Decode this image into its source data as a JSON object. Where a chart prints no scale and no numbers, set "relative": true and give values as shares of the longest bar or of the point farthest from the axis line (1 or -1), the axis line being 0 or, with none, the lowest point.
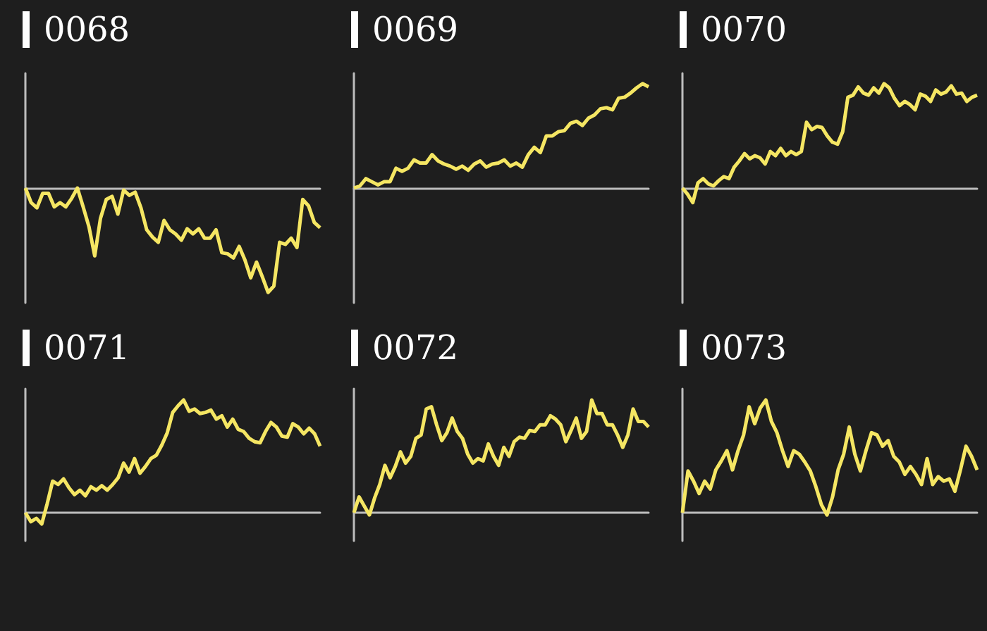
{
  "chart_data": [
    {
      "type": "line",
      "title": "0068",
      "relative": true,
      "categories": [
        null,
        null,
        null,
        null,
        null,
        null,
        null,
        null,
        null,
        null,
        null,
        null,
        null,
        null,
        null,
        null,
        null,
        null,
        null,
        null,
        null,
        null,
        null,
        null,
        null,
        null,
        null,
        null,
        null,
        null,
        null,
        null,
        null,
        null,
        null,
        null,
        null,
        null,
        null,
        null,
        null,
        null,
        null,
        null,
        null,
        null,
        null,
        null,
        null,
        null,
        null,
        null
      ],
      "series": [
        {
          "color": "#f5e663",
          "values": [
            0,
            -0.14,
            -0.19,
            -0.05,
            -0.05,
            -0.18,
            -0.14,
            -0.18,
            -0.1,
            0,
            -0.18,
            -0.37,
            -0.65,
            -0.29,
            -0.11,
            -0.08,
            -0.25,
            -0.02,
            -0.07,
            -0.04,
            -0.19,
            -0.4,
            -0.47,
            -0.52,
            -0.31,
            -0.4,
            -0.44,
            -0.5,
            -0.39,
            -0.44,
            -0.39,
            -0.48,
            -0.48,
            -0.4,
            -0.62,
            -0.63,
            -0.67,
            -0.56,
            -0.69,
            -0.86,
            -0.71,
            -0.85,
            -1,
            -0.94,
            -0.52,
            -0.54,
            -0.48,
            -0.57,
            -0.11,
            -0.17,
            -0.33,
            -0.38
          ]
        }
      ]
    },
    {
      "type": "line",
      "title": "0069",
      "relative": true,
      "categories": [
        null,
        null,
        null,
        null,
        null,
        null,
        null,
        null,
        null,
        null,
        null,
        null,
        null,
        null,
        null,
        null,
        null,
        null,
        null,
        null,
        null,
        null,
        null,
        null,
        null,
        null,
        null,
        null,
        null,
        null,
        null,
        null,
        null,
        null,
        null,
        null,
        null,
        null,
        null,
        null,
        null,
        null,
        null,
        null,
        null,
        null,
        null,
        null,
        null,
        null
      ],
      "series": [
        {
          "color": "#f5e663",
          "values": [
            0,
            0.02,
            0.09,
            0.06,
            0.03,
            0.06,
            0.06,
            0.19,
            0.16,
            0.19,
            0.27,
            0.24,
            0.24,
            0.32,
            0.26,
            0.23,
            0.21,
            0.18,
            0.21,
            0.17,
            0.23,
            0.26,
            0.2,
            0.23,
            0.24,
            0.27,
            0.21,
            0.24,
            0.2,
            0.32,
            0.39,
            0.34,
            0.5,
            0.5,
            0.54,
            0.55,
            0.62,
            0.64,
            0.6,
            0.67,
            0.7,
            0.76,
            0.77,
            0.75,
            0.86,
            0.87,
            0.91,
            0.96,
            1,
            0.97
          ]
        }
      ]
    },
    {
      "type": "line",
      "title": "0070",
      "relative": true,
      "categories": [
        null,
        null,
        null,
        null,
        null,
        null,
        null,
        null,
        null,
        null,
        null,
        null,
        null,
        null,
        null,
        null,
        null,
        null,
        null,
        null,
        null,
        null,
        null,
        null,
        null,
        null,
        null,
        null,
        null,
        null,
        null,
        null,
        null,
        null,
        null,
        null,
        null,
        null,
        null,
        null,
        null,
        null,
        null,
        null,
        null,
        null,
        null,
        null,
        null,
        null,
        null,
        null,
        null,
        null,
        null,
        null,
        null,
        null
      ],
      "series": [
        {
          "color": "#f5e663",
          "values": [
            0,
            -0.06,
            -0.14,
            0.05,
            0.09,
            0.04,
            0.02,
            0.07,
            0.11,
            0.09,
            0.2,
            0.26,
            0.33,
            0.28,
            0.31,
            0.29,
            0.23,
            0.35,
            0.31,
            0.38,
            0.31,
            0.35,
            0.32,
            0.35,
            0.63,
            0.56,
            0.59,
            0.58,
            0.5,
            0.44,
            0.42,
            0.54,
            0.87,
            0.89,
            0.97,
            0.91,
            0.89,
            0.96,
            0.91,
            1,
            0.96,
            0.86,
            0.79,
            0.83,
            0.8,
            0.75,
            0.9,
            0.88,
            0.83,
            0.94,
            0.9,
            0.92,
            0.98,
            0.9,
            0.91,
            0.83,
            0.87,
            0.89
          ]
        }
      ]
    },
    {
      "type": "line",
      "title": "0071",
      "relative": true,
      "categories": [
        null,
        null,
        null,
        null,
        null,
        null,
        null,
        null,
        null,
        null,
        null,
        null,
        null,
        null,
        null,
        null,
        null,
        null,
        null,
        null,
        null,
        null,
        null,
        null,
        null,
        null,
        null,
        null,
        null,
        null,
        null,
        null,
        null,
        null,
        null,
        null,
        null,
        null,
        null,
        null,
        null,
        null,
        null,
        null,
        null,
        null,
        null,
        null,
        null,
        null,
        null,
        null,
        null,
        null,
        null
      ],
      "series": [
        {
          "color": "#f5e663",
          "values": [
            0,
            -0.08,
            -0.05,
            -0.1,
            0.08,
            0.28,
            0.25,
            0.3,
            0.22,
            0.16,
            0.2,
            0.15,
            0.23,
            0.2,
            0.24,
            0.2,
            0.25,
            0.31,
            0.44,
            0.36,
            0.48,
            0.35,
            0.41,
            0.48,
            0.51,
            0.6,
            0.71,
            0.89,
            0.95,
            1,
            0.9,
            0.92,
            0.88,
            0.89,
            0.91,
            0.83,
            0.86,
            0.76,
            0.83,
            0.74,
            0.72,
            0.66,
            0.63,
            0.62,
            0.72,
            0.8,
            0.76,
            0.68,
            0.67,
            0.79,
            0.76,
            0.7,
            0.75,
            0.7,
            0.59
          ]
        }
      ]
    },
    {
      "type": "line",
      "title": "0072",
      "relative": true,
      "categories": [
        null,
        null,
        null,
        null,
        null,
        null,
        null,
        null,
        null,
        null,
        null,
        null,
        null,
        null,
        null,
        null,
        null,
        null,
        null,
        null,
        null,
        null,
        null,
        null,
        null,
        null,
        null,
        null,
        null,
        null,
        null,
        null,
        null,
        null,
        null,
        null,
        null,
        null,
        null,
        null,
        null,
        null,
        null,
        null,
        null,
        null,
        null,
        null,
        null,
        null,
        null,
        null,
        null,
        null,
        null,
        null,
        null,
        null
      ],
      "series": [
        {
          "color": "#f5e663",
          "values": [
            0,
            0.14,
            0.06,
            -0.02,
            0.13,
            0.25,
            0.42,
            0.31,
            0.41,
            0.54,
            0.44,
            0.5,
            0.66,
            0.69,
            0.92,
            0.94,
            0.78,
            0.64,
            0.71,
            0.84,
            0.72,
            0.66,
            0.52,
            0.44,
            0.48,
            0.46,
            0.61,
            0.5,
            0.42,
            0.58,
            0.5,
            0.63,
            0.67,
            0.66,
            0.73,
            0.72,
            0.78,
            0.78,
            0.86,
            0.83,
            0.78,
            0.63,
            0.73,
            0.84,
            0.66,
            0.72,
            1,
            0.88,
            0.88,
            0.78,
            0.78,
            0.69,
            0.58,
            0.69,
            0.92,
            0.81,
            0.81,
            0.76
          ]
        }
      ]
    },
    {
      "type": "line",
      "title": "0073",
      "relative": true,
      "categories": [
        null,
        null,
        null,
        null,
        null,
        null,
        null,
        null,
        null,
        null,
        null,
        null,
        null,
        null,
        null,
        null,
        null,
        null,
        null,
        null,
        null,
        null,
        null,
        null,
        null,
        null,
        null,
        null,
        null,
        null,
        null,
        null,
        null,
        null,
        null,
        null,
        null,
        null,
        null,
        null,
        null,
        null,
        null,
        null,
        null,
        null,
        null,
        null,
        null,
        null,
        null,
        null,
        null,
        null
      ],
      "series": [
        {
          "color": "#f5e663",
          "values": [
            0,
            0.37,
            0.28,
            0.17,
            0.28,
            0.21,
            0.38,
            0.46,
            0.55,
            0.38,
            0.55,
            0.69,
            0.94,
            0.79,
            0.93,
            1,
            0.81,
            0.71,
            0.55,
            0.41,
            0.55,
            0.52,
            0.45,
            0.37,
            0.23,
            0.07,
            -0.02,
            0.14,
            0.38,
            0.52,
            0.76,
            0.52,
            0.37,
            0.55,
            0.71,
            0.69,
            0.59,
            0.64,
            0.5,
            0.45,
            0.34,
            0.41,
            0.34,
            0.25,
            0.48,
            0.25,
            0.32,
            0.28,
            0.3,
            0.19,
            0.38,
            0.59,
            0.5,
            0.38
          ]
        }
      ]
    }
  ]
}
